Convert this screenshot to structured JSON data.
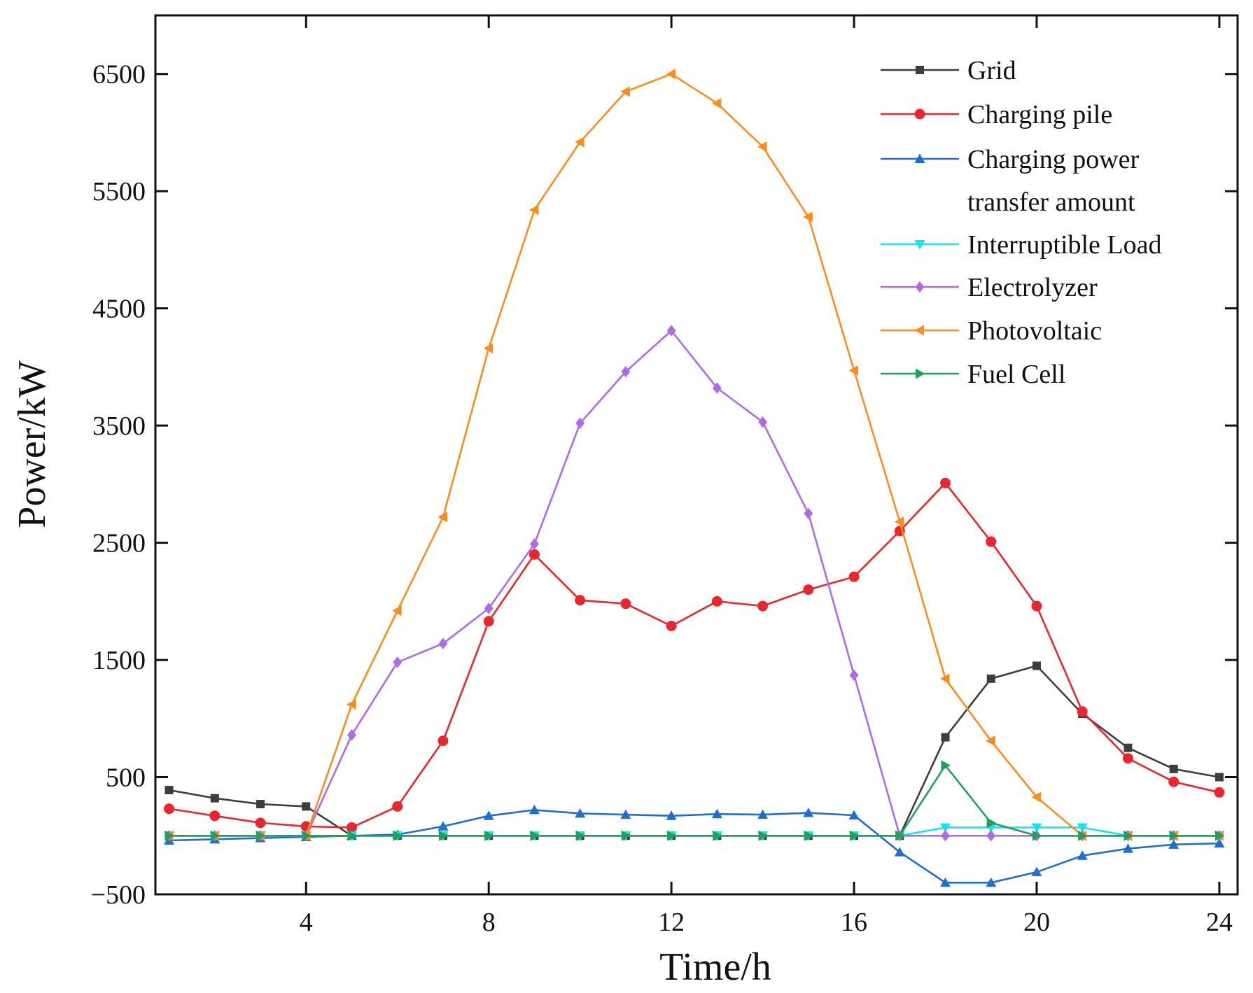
{
  "chart_data": {
    "type": "line",
    "title": "",
    "xlabel": "Time/h",
    "ylabel": "Power/kW",
    "xlim": [
      0.7,
      24.4
    ],
    "ylim": [
      -500,
      7000
    ],
    "xticks": [
      4,
      8,
      12,
      16,
      20,
      24
    ],
    "yticks": [
      -500,
      500,
      1500,
      2500,
      3500,
      4500,
      5500,
      6500
    ],
    "grid": false,
    "legend_position": "top-right",
    "x": [
      1,
      2,
      3,
      4,
      5,
      6,
      7,
      8,
      9,
      10,
      11,
      12,
      13,
      14,
      15,
      16,
      17,
      18,
      19,
      20,
      21,
      22,
      23,
      24
    ],
    "series": [
      {
        "name": "Grid",
        "color": "#3d3d3d",
        "marker": "square",
        "values": [
          390,
          320,
          270,
          250,
          0,
          0,
          0,
          0,
          0,
          0,
          0,
          0,
          0,
          0,
          0,
          0,
          0,
          840,
          1340,
          1450,
          1040,
          750,
          570,
          500
        ]
      },
      {
        "name": "Charging pile",
        "color": "#e8262b",
        "marker": "circle",
        "values": [
          230,
          170,
          110,
          80,
          70,
          250,
          810,
          1830,
          2400,
          2010,
          1980,
          1790,
          2000,
          1960,
          2100,
          2210,
          2600,
          3010,
          2510,
          1960,
          1060,
          660,
          460,
          370
        ]
      },
      {
        "name": "Charging power transfer amount",
        "color": "#1f6fd1",
        "marker": "triangle-up",
        "values": [
          -40,
          -30,
          -20,
          -10,
          0,
          10,
          80,
          170,
          220,
          190,
          180,
          170,
          185,
          180,
          195,
          175,
          -140,
          -400,
          -400,
          -310,
          -170,
          -110,
          -75,
          -65
        ]
      },
      {
        "name": "Interruptible Load",
        "color": "#12e4f0",
        "marker": "triangle-down",
        "values": [
          0,
          0,
          0,
          0,
          0,
          0,
          0,
          0,
          0,
          0,
          0,
          0,
          0,
          0,
          0,
          0,
          0,
          70,
          70,
          70,
          70,
          0,
          0,
          0
        ]
      },
      {
        "name": "Electrolyzer",
        "color": "#b06ae6",
        "marker": "diamond",
        "values": [
          0,
          0,
          0,
          0,
          860,
          1480,
          1640,
          1940,
          2490,
          3520,
          3960,
          4310,
          3820,
          3530,
          2750,
          1370,
          0,
          0,
          0,
          0,
          0,
          0,
          0,
          0
        ]
      },
      {
        "name": "Photovoltaic",
        "color": "#ff8c1a",
        "marker": "triangle-left",
        "values": [
          0,
          0,
          0,
          0,
          1120,
          1920,
          2720,
          4160,
          5340,
          5920,
          6350,
          6500,
          6250,
          5880,
          5280,
          3970,
          2680,
          1340,
          810,
          330,
          0,
          0,
          0,
          0
        ]
      },
      {
        "name": "Fuel Cell",
        "color": "#21a05c",
        "marker": "triangle-right",
        "values": [
          0,
          0,
          0,
          0,
          0,
          0,
          0,
          0,
          0,
          0,
          0,
          0,
          0,
          0,
          0,
          0,
          0,
          600,
          110,
          0,
          0,
          0,
          0,
          0
        ]
      }
    ],
    "legend": [
      {
        "line1": "Grid",
        "line2": ""
      },
      {
        "line1": "Charging pile",
        "line2": ""
      },
      {
        "line1": "Charging power",
        "line2": "transfer amount"
      },
      {
        "line1": "Interruptible Load",
        "line2": ""
      },
      {
        "line1": "Electrolyzer",
        "line2": ""
      },
      {
        "line1": "Photovoltaic",
        "line2": ""
      },
      {
        "line1": "Fuel Cell",
        "line2": ""
      }
    ]
  }
}
